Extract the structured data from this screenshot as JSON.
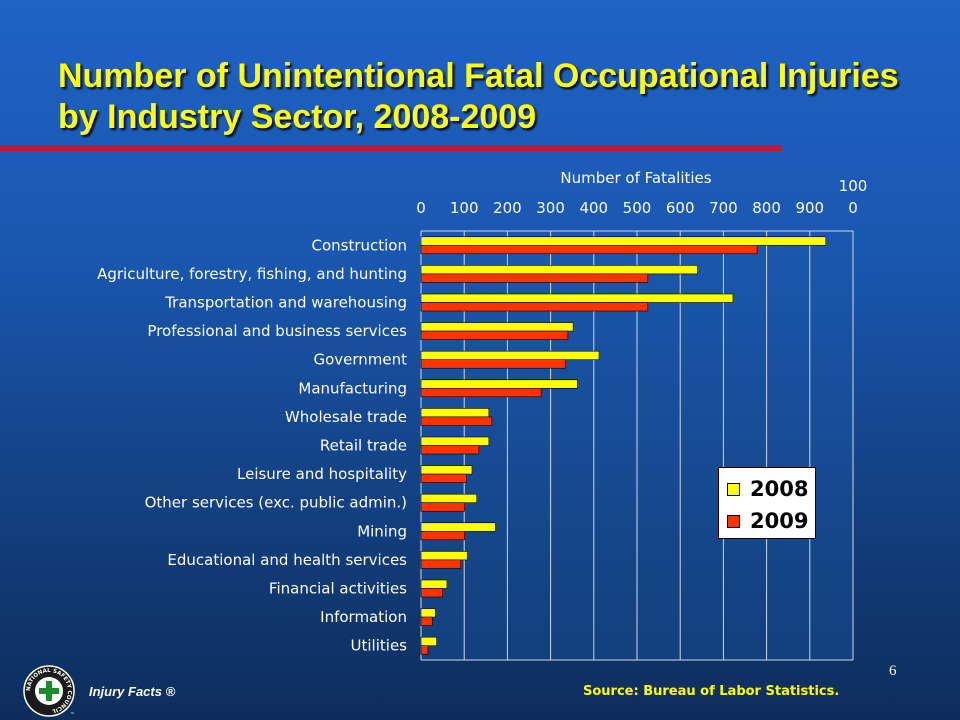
{
  "slide": {
    "title": "Number of Unintentional Fatal Occupational Injuries by Industry Sector, 2008-2009",
    "page_number": "6",
    "source": "Source: Bureau of Labor Statistics.",
    "brand": "Injury Facts ®",
    "logo_text": "NATIONAL SAFETY COUNCIL",
    "logo_mark": "™"
  },
  "colors": {
    "series_2008": "#ffff00",
    "series_2009": "#ff3300",
    "title": "#ffff00",
    "rule": "#c0183a"
  },
  "chart_data": {
    "type": "bar",
    "orientation": "horizontal",
    "xlabel": "Number of Fatalities",
    "xlim": [
      0,
      1000
    ],
    "ticks": [
      "0",
      "100",
      "200",
      "300",
      "400",
      "500",
      "600",
      "700",
      "800",
      "900",
      "100",
      "0"
    ],
    "grid": true,
    "legend_position": "bottom-right",
    "categories": [
      "Construction",
      "Agriculture, forestry, fishing, and hunting",
      "Transportation and warehousing",
      "Professional and business services",
      "Government",
      "Manufacturing",
      "Wholesale trade",
      "Retail trade",
      "Leisure and hospitality",
      "Other services (exc. public admin.)",
      "Mining",
      "Educational and health services",
      "Financial activities",
      "Information",
      "Utilities"
    ],
    "series": [
      {
        "name": "2008",
        "values": [
          937,
          640,
          722,
          352,
          412,
          362,
          157,
          157,
          118,
          129,
          172,
          107,
          60,
          33,
          36
        ]
      },
      {
        "name": "2009",
        "values": [
          778,
          525,
          525,
          340,
          335,
          278,
          164,
          134,
          105,
          101,
          101,
          92,
          50,
          26,
          16
        ]
      }
    ]
  }
}
